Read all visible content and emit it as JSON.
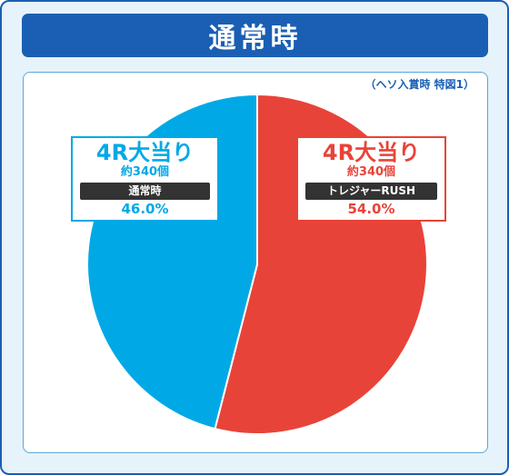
{
  "title": "通常時",
  "note": "（ヘソ入賞時 特図1）",
  "colors": {
    "blue": "#00A9E6",
    "red": "#E84339",
    "navy": "#1A5FB4"
  },
  "chart_data": {
    "type": "pie",
    "slices": [
      {
        "label": "4R大当り",
        "balls": "約340個",
        "route": "トレジャーRUSH",
        "percent_text": "54.0%",
        "value": 54.0,
        "color": "#E84339"
      },
      {
        "label": "4R大当り",
        "balls": "約340個",
        "route": "通常時",
        "percent_text": "46.0%",
        "value": 46.0,
        "color": "#00A9E6"
      }
    ]
  }
}
